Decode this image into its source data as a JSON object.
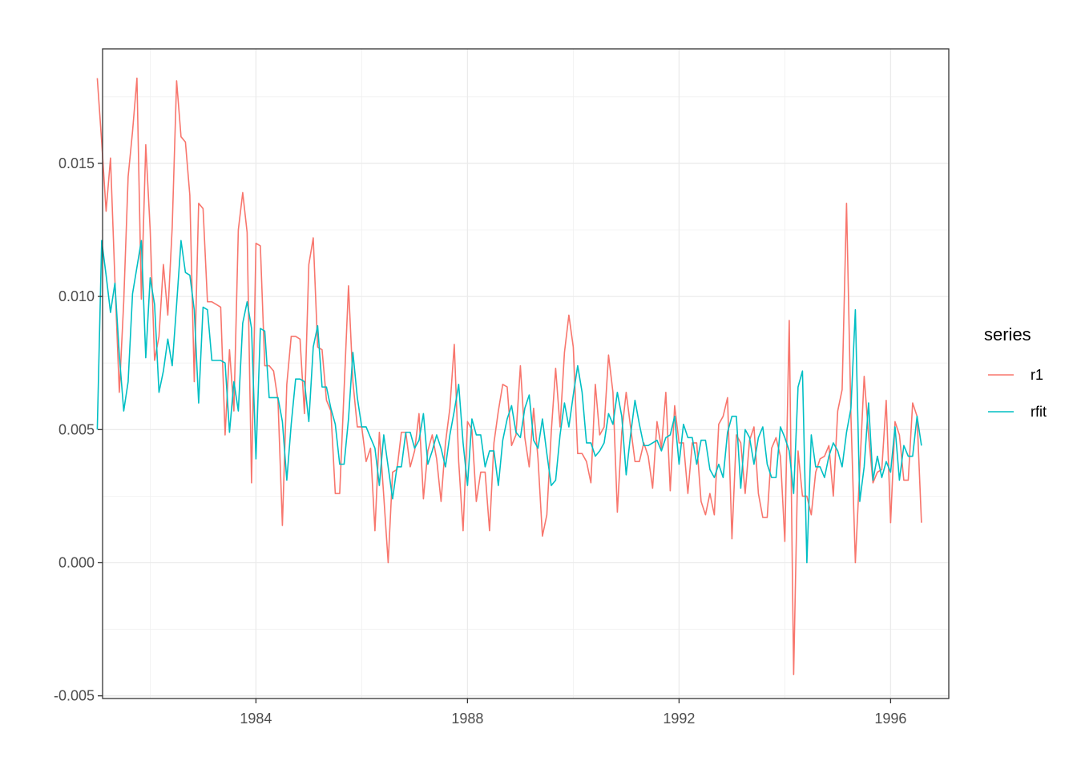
{
  "chart_data": {
    "type": "line",
    "title": "",
    "xlabel": "",
    "ylabel": "",
    "xlim": [
      1981.1,
      1997.1
    ],
    "ylim": [
      -0.0051,
      0.0193
    ],
    "x_ticks": [
      1984,
      1988,
      1992,
      1996
    ],
    "x_tick_labels": [
      "1984",
      "1988",
      "1992",
      "1996"
    ],
    "y_ticks": [
      -0.005,
      0.0,
      0.005,
      0.01,
      0.015
    ],
    "y_tick_labels": [
      "-0.005",
      "0.000",
      "0.005",
      "0.010",
      "0.015"
    ],
    "grid": true,
    "legend": {
      "title": "series",
      "position": "right"
    },
    "x_start": 1981.0,
    "x_step": 0.08333333,
    "series": [
      {
        "name": "r1",
        "color": "#F8766D",
        "values": [
          0.0182,
          0.0158,
          0.0132,
          0.0152,
          0.0106,
          0.0064,
          0.0098,
          0.0145,
          0.0162,
          0.0182,
          0.0099,
          0.0157,
          0.0125,
          0.0076,
          0.0085,
          0.0112,
          0.0093,
          0.0126,
          0.0181,
          0.016,
          0.0158,
          0.0138,
          0.0068,
          0.0135,
          0.0133,
          0.0098,
          0.0098,
          0.0097,
          0.0096,
          0.0048,
          0.008,
          0.0057,
          0.0125,
          0.0139,
          0.0124,
          0.003,
          0.012,
          0.0119,
          0.0074,
          0.0074,
          0.0072,
          0.0061,
          0.0014,
          0.0067,
          0.0085,
          0.0085,
          0.0084,
          0.0056,
          0.0112,
          0.0122,
          0.0081,
          0.008,
          0.0061,
          0.0057,
          0.0026,
          0.0026,
          0.0065,
          0.0104,
          0.0068,
          0.0051,
          0.0051,
          0.0038,
          0.0043,
          0.0012,
          0.0049,
          0.0025,
          0.0,
          0.0034,
          0.0035,
          0.0049,
          0.0049,
          0.0036,
          0.0042,
          0.0056,
          0.0024,
          0.0042,
          0.0048,
          0.0039,
          0.0023,
          0.0045,
          0.0058,
          0.0082,
          0.0038,
          0.0012,
          0.0053,
          0.005,
          0.0023,
          0.0034,
          0.0034,
          0.0012,
          0.0045,
          0.0057,
          0.0067,
          0.0066,
          0.0044,
          0.0048,
          0.0074,
          0.0047,
          0.0036,
          0.0058,
          0.0039,
          0.001,
          0.0018,
          0.0049,
          0.0073,
          0.0051,
          0.0079,
          0.0093,
          0.0081,
          0.0041,
          0.0041,
          0.0038,
          0.003,
          0.0067,
          0.0048,
          0.0051,
          0.0078,
          0.0064,
          0.0019,
          0.0049,
          0.0064,
          0.0051,
          0.0038,
          0.0038,
          0.0045,
          0.004,
          0.0028,
          0.0053,
          0.0043,
          0.0064,
          0.0027,
          0.0059,
          0.0045,
          0.0045,
          0.0026,
          0.0045,
          0.0045,
          0.0023,
          0.0018,
          0.0026,
          0.0018,
          0.0052,
          0.0055,
          0.0062,
          0.0009,
          0.0048,
          0.0045,
          0.0026,
          0.0046,
          0.0051,
          0.0026,
          0.0017,
          0.0017,
          0.0043,
          0.0047,
          0.004,
          0.0008,
          0.0091,
          -0.0042,
          0.0042,
          0.0025,
          0.0025,
          0.0018,
          0.0034,
          0.0039,
          0.004,
          0.0044,
          0.0025,
          0.0057,
          0.0065,
          0.0135,
          0.0055,
          0.0,
          0.0035,
          0.007,
          0.0048,
          0.003,
          0.0034,
          0.0035,
          0.0061,
          0.0015,
          0.0053,
          0.0048,
          0.0031,
          0.0031,
          0.006,
          0.0055,
          0.0015
        ]
      },
      {
        "name": "rfit",
        "color": "#00BFC4",
        "values": [
          0.005,
          0.0121,
          0.0108,
          0.0094,
          0.0105,
          0.0078,
          0.0057,
          0.0068,
          0.0101,
          0.0111,
          0.0121,
          0.0077,
          0.0107,
          0.0097,
          0.0064,
          0.0072,
          0.0084,
          0.0074,
          0.0097,
          0.0121,
          0.0109,
          0.0108,
          0.0095,
          0.006,
          0.0096,
          0.0095,
          0.0076,
          0.0076,
          0.0076,
          0.0075,
          0.0049,
          0.0068,
          0.0057,
          0.009,
          0.0098,
          0.0088,
          0.0039,
          0.0088,
          0.0087,
          0.0062,
          0.0062,
          0.0062,
          0.0053,
          0.0031,
          0.0052,
          0.0069,
          0.0069,
          0.0068,
          0.0053,
          0.0081,
          0.0089,
          0.0066,
          0.0066,
          0.0058,
          0.0052,
          0.0037,
          0.0037,
          0.0054,
          0.0079,
          0.0062,
          0.0051,
          0.0051,
          0.0047,
          0.0043,
          0.0029,
          0.0048,
          0.0036,
          0.0024,
          0.0036,
          0.0036,
          0.0049,
          0.0049,
          0.0043,
          0.0046,
          0.0056,
          0.0037,
          0.0042,
          0.0048,
          0.0043,
          0.0036,
          0.0048,
          0.0057,
          0.0067,
          0.0045,
          0.0029,
          0.0054,
          0.0048,
          0.0048,
          0.0036,
          0.0042,
          0.0042,
          0.0029,
          0.0046,
          0.0054,
          0.0059,
          0.0049,
          0.0047,
          0.0058,
          0.0063,
          0.0046,
          0.0043,
          0.0054,
          0.0041,
          0.0029,
          0.0031,
          0.0048,
          0.006,
          0.0051,
          0.0063,
          0.0074,
          0.0064,
          0.0045,
          0.0045,
          0.004,
          0.0042,
          0.0045,
          0.0056,
          0.0052,
          0.0064,
          0.0055,
          0.0033,
          0.0048,
          0.0061,
          0.0052,
          0.0044,
          0.0044,
          0.0045,
          0.0046,
          0.0042,
          0.0047,
          0.0048,
          0.0055,
          0.0037,
          0.0052,
          0.0047,
          0.0047,
          0.0037,
          0.0046,
          0.0046,
          0.0035,
          0.0032,
          0.0037,
          0.0032,
          0.0049,
          0.0055,
          0.0055,
          0.0028,
          0.005,
          0.0047,
          0.0037,
          0.0047,
          0.0051,
          0.0037,
          0.0032,
          0.0032,
          0.0051,
          0.0047,
          0.0042,
          0.0026,
          0.0066,
          0.0072,
          0.0,
          0.0048,
          0.0036,
          0.0036,
          0.0032,
          0.004,
          0.0045,
          0.0042,
          0.0036,
          0.0049,
          0.0058,
          0.0095,
          0.0023,
          0.0036,
          0.006,
          0.0031,
          0.004,
          0.0032,
          0.0038,
          0.0034,
          0.0051,
          0.0031,
          0.0044,
          0.004,
          0.004,
          0.0055,
          0.0044
        ]
      }
    ]
  }
}
